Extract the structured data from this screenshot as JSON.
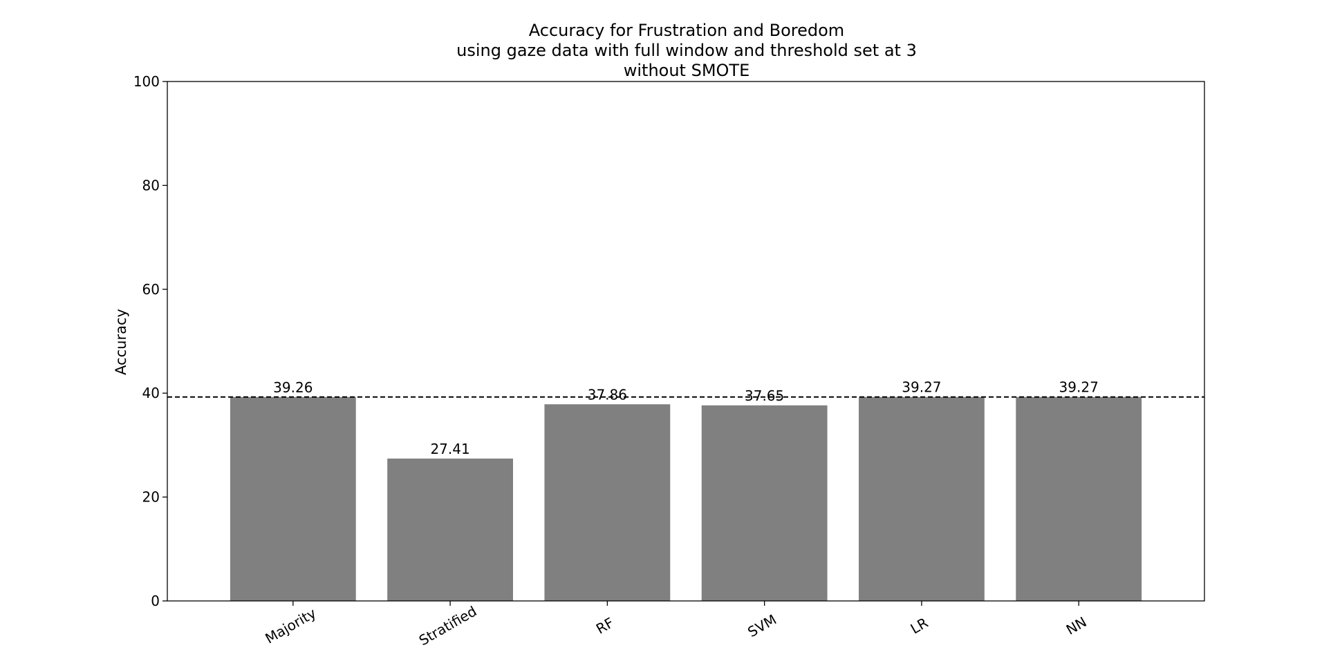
{
  "chart_data": {
    "type": "bar",
    "title_lines": [
      "Accuracy for Frustration and Boredom",
      "using gaze data with full window and threshold set at 3",
      "without SMOTE"
    ],
    "xlabel": "",
    "ylabel": "Accuracy",
    "categories": [
      "Majority",
      "Stratified",
      "RF",
      "SVM",
      "LR",
      "NN"
    ],
    "values": [
      39.26,
      27.41,
      37.86,
      37.65,
      39.27,
      39.27
    ],
    "data_labels": [
      "39.26",
      "27.41",
      "37.86",
      "37.65",
      "39.27",
      "39.27"
    ],
    "ylim": [
      0,
      100
    ],
    "yticks": [
      0,
      20,
      40,
      60,
      80,
      100
    ],
    "baseline": 39.26,
    "baseline_style": "dashed",
    "bar_color": "#808080",
    "grid": false,
    "legend": "none"
  }
}
